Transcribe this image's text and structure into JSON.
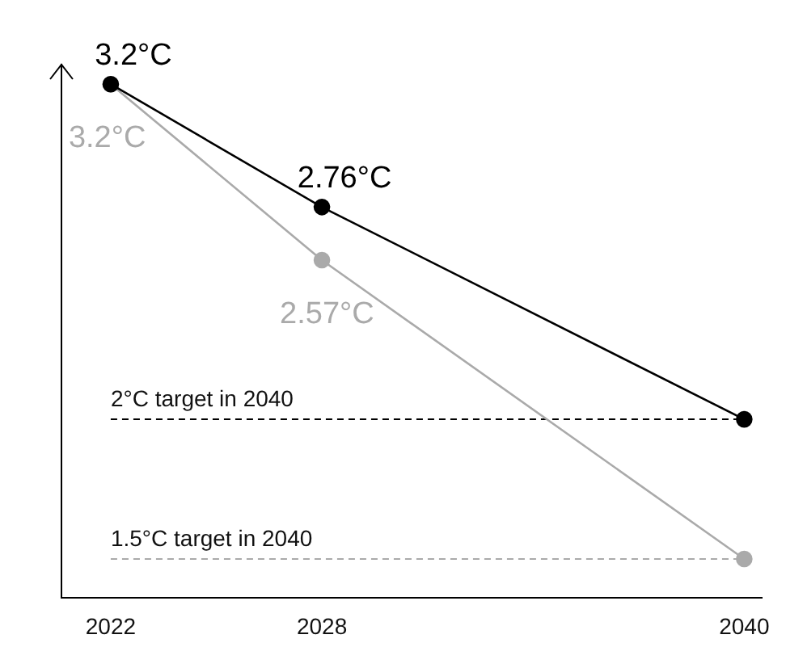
{
  "chart_data": {
    "type": "line",
    "x": [
      2022,
      2028,
      2040
    ],
    "xlim": [
      2020.6,
      2040.5
    ],
    "xticks": [
      2022,
      2028,
      2040
    ],
    "ylim": [
      1.36,
      3.27
    ],
    "tick_labels": "x",
    "grid": false,
    "legend": false,
    "marker": "circle",
    "line_style": "solid",
    "series": [
      {
        "color": "#000000",
        "values": [
          3.2,
          2.76,
          2.0
        ],
        "value_labels": [
          "3.2°C",
          "2.76°C",
          null
        ]
      },
      {
        "color": "#aaaaaa",
        "values": [
          3.2,
          2.57,
          1.5
        ],
        "value_labels": [
          "3.2°C",
          "2.57°C",
          null
        ]
      }
    ],
    "ref_lines": [
      {
        "axis": "y",
        "value": 2.0,
        "label": "2°C target in 2040",
        "color": "#000000",
        "line_style": "dashed"
      },
      {
        "axis": "y",
        "value": 1.5,
        "label": "1.5°C target in 2040",
        "color": "#aaaaaa",
        "line_style": "dashed"
      }
    ]
  }
}
